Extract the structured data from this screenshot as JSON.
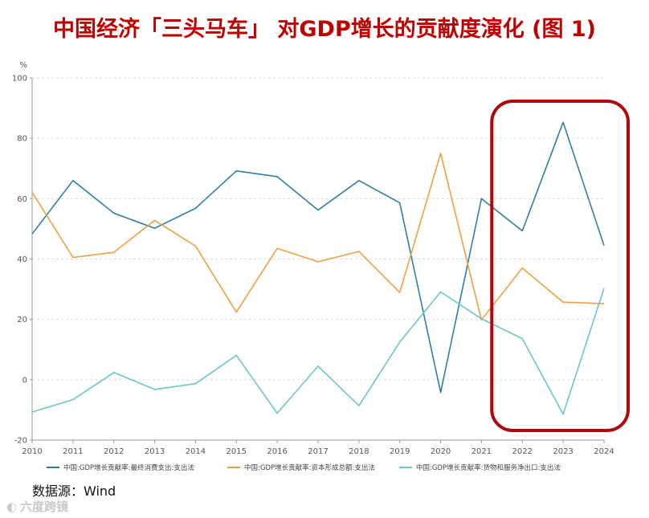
{
  "title": "中国经济「三头马车」 对GDP增长的贡献度演化 (图 1)",
  "source": "数据源：Wind",
  "watermark": "六度跨镜",
  "colors": {
    "consumption": "#2e7ea6",
    "capital": "#f0a040",
    "netexport": "#6cc5c9",
    "highlight": "#b0050a"
  },
  "chart_data": {
    "type": "line",
    "unit_label": "%",
    "x": [
      2010,
      2011,
      2012,
      2013,
      2014,
      2015,
      2016,
      2017,
      2018,
      2019,
      2020,
      2021,
      2022,
      2023,
      2024
    ],
    "ylim": [
      -20,
      100
    ],
    "yticks": [
      -20,
      0,
      20,
      40,
      60,
      80,
      100
    ],
    "grid": "horizontal dashed",
    "legend_position": "bottom",
    "series": [
      {
        "name": "中国:GDP增长贡献率:最终消费支出:支出法",
        "color_key": "consumption",
        "values": [
          48.3,
          66.0,
          55.2,
          50.2,
          56.8,
          69.2,
          67.3,
          56.2,
          66.0,
          58.6,
          -4.2,
          60.0,
          49.3,
          85.3,
          44.5
        ]
      },
      {
        "name": "中国:GDP增长贡献率:资本形成总额:支出法",
        "color_key": "capital",
        "values": [
          62.1,
          40.5,
          42.2,
          52.8,
          44.3,
          22.4,
          43.5,
          39.1,
          42.5,
          28.9,
          75.0,
          19.8,
          37.0,
          25.7,
          25.2
        ]
      },
      {
        "name": "中国:GDP增长贡献率:货物和服务净出口:支出法",
        "color_key": "netexport",
        "values": [
          -10.7,
          -6.6,
          2.4,
          -3.2,
          -1.3,
          8.1,
          -11.1,
          4.5,
          -8.6,
          12.5,
          29.1,
          20.2,
          13.6,
          -11.4,
          30.3
        ]
      }
    ]
  }
}
